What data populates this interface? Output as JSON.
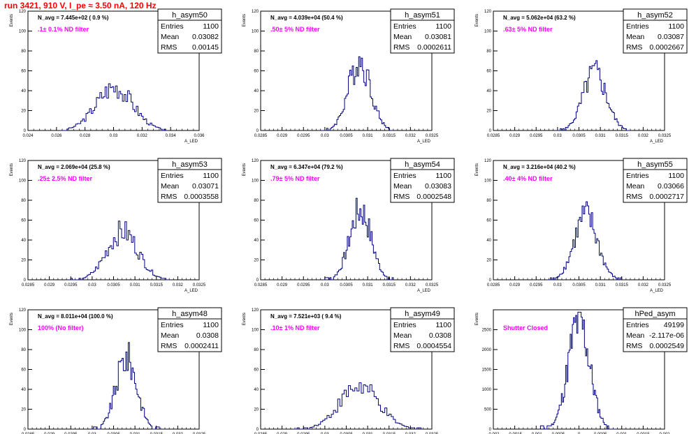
{
  "run_title": "run 3421,   910 V, I_pe ≈ 3.50 nA, 120 Hz",
  "colors": {
    "hist": "#000080",
    "annotation": "#ff00ff",
    "title": "#ff0000",
    "text": "#000000"
  },
  "axis_titles": {
    "x": "A_LED",
    "y": "Events"
  },
  "chart_data": [
    {
      "type": "bar",
      "name": "h_asym50",
      "navg": "N_avg = 7.445e+02 ( 0.9 %)",
      "filter": ".1± 0.1% ND filter",
      "stats": {
        "entries": "1100",
        "mean": "0.03082",
        "rms": "0.00145"
      },
      "xlim": [
        0.024,
        0.0375
      ],
      "ylim": [
        0,
        120
      ],
      "xticks": [
        "0.024",
        "0.026",
        "0.028",
        "0.03",
        "0.032",
        "0.034",
        "0.036"
      ],
      "yticks": [
        "0",
        "20",
        "40",
        "60",
        "80",
        "100",
        "120"
      ],
      "hist": {
        "mean": 0.03082,
        "sigma": 0.00145,
        "peak": 45,
        "bins": 60,
        "lo": 0.0268,
        "hi": 0.035
      }
    },
    {
      "type": "bar",
      "name": "h_asym51",
      "navg": "N_avg = 4.039e+04 (50.4 %)",
      "filter": ".50± 5% ND filter",
      "stats": {
        "entries": "1100",
        "mean": "0.03081",
        "rms": "0.0002611"
      },
      "xlim": [
        0.0285,
        0.0325
      ],
      "ylim": [
        0,
        120
      ],
      "xticks": [
        "0.0285",
        "0.029",
        "0.0295",
        "0.03",
        "0.0305",
        "0.031",
        "0.0315",
        "0.032",
        "0.0325"
      ],
      "yticks": [
        "0",
        "20",
        "40",
        "60",
        "80",
        "100",
        "120"
      ],
      "hist": {
        "mean": 0.03081,
        "sigma": 0.00026,
        "peak": 72,
        "bins": 55,
        "lo": 0.02995,
        "hi": 0.0316
      }
    },
    {
      "type": "bar",
      "name": "h_asym52",
      "navg": "N_avg = 5.062e+04 (63.2 %)",
      "filter": ".63± 5% ND filter",
      "stats": {
        "entries": "1100",
        "mean": "0.03087",
        "rms": "0.0002667"
      },
      "xlim": [
        0.0285,
        0.0325
      ],
      "ylim": [
        0,
        120
      ],
      "xticks": [
        "0.0285",
        "0.029",
        "0.0295",
        "0.03",
        "0.0305",
        "0.031",
        "0.0315",
        "0.032",
        "0.0325"
      ],
      "yticks": [
        "0",
        "20",
        "40",
        "60",
        "80",
        "100",
        "120"
      ],
      "hist": {
        "mean": 0.03087,
        "sigma": 0.00027,
        "peak": 60,
        "bins": 55,
        "lo": 0.03,
        "hi": 0.0317
      }
    },
    {
      "type": "bar",
      "name": "h_asym53",
      "navg": "N_avg = 2.069e+04 (25.8 %)",
      "filter": ".25± 2.5% ND filter",
      "stats": {
        "entries": "1100",
        "mean": "0.03071",
        "rms": "0.0003558"
      },
      "xlim": [
        0.0285,
        0.0325
      ],
      "ylim": [
        0,
        120
      ],
      "xticks": [
        "0.0285",
        "0.029",
        "0.0295",
        "0.03",
        "0.0305",
        "0.031",
        "0.0315",
        "0.032",
        "0.0325"
      ],
      "yticks": [
        "0",
        "20",
        "40",
        "60",
        "80",
        "100",
        "120"
      ],
      "hist": {
        "mean": 0.03071,
        "sigma": 0.00036,
        "peak": 50,
        "bins": 60,
        "lo": 0.0295,
        "hi": 0.0318
      }
    },
    {
      "type": "bar",
      "name": "h_asym54",
      "navg": "N_avg = 6.347e+04 (79.2 %)",
      "filter": ".79± 5% ND filter",
      "stats": {
        "entries": "1100",
        "mean": "0.03083",
        "rms": "0.0002548"
      },
      "xlim": [
        0.0285,
        0.0325
      ],
      "ylim": [
        0,
        120
      ],
      "xticks": [
        "0.0285",
        "0.029",
        "0.0295",
        "0.03",
        "0.0305",
        "0.031",
        "0.0315",
        "0.032",
        "0.0325"
      ],
      "yticks": [
        "0",
        "20",
        "40",
        "60",
        "80",
        "100",
        "120"
      ],
      "hist": {
        "mean": 0.03083,
        "sigma": 0.00025,
        "peak": 72,
        "bins": 55,
        "lo": 0.03,
        "hi": 0.0316
      }
    },
    {
      "type": "bar",
      "name": "h_asym55",
      "navg": "N_avg = 3.216e+04 (40.2 %)",
      "filter": ".40± 4% ND filter",
      "stats": {
        "entries": "1100",
        "mean": "0.03066",
        "rms": "0.0002717"
      },
      "xlim": [
        0.0285,
        0.0325
      ],
      "ylim": [
        0,
        120
      ],
      "xticks": [
        "0.0285",
        "0.029",
        "0.0295",
        "0.03",
        "0.0305",
        "0.031",
        "0.0315",
        "0.032",
        "0.0325"
      ],
      "yticks": [
        "0",
        "20",
        "40",
        "60",
        "80",
        "100",
        "120"
      ],
      "hist": {
        "mean": 0.03066,
        "sigma": 0.00027,
        "peak": 66,
        "bins": 55,
        "lo": 0.0298,
        "hi": 0.0315
      }
    },
    {
      "type": "bar",
      "name": "h_asym48",
      "navg": "N_avg = 8.011e+04 (100.0 %)",
      "filter": "100% (No filter)",
      "stats": {
        "entries": "1100",
        "mean": "0.0308",
        "rms": "0.0002411"
      },
      "xlim": [
        0.0285,
        0.0325
      ],
      "ylim": [
        0,
        120
      ],
      "xticks": [
        "0.0285",
        "0.029",
        "0.0295",
        "0.03",
        "0.0305",
        "0.031",
        "0.0315",
        "0.032",
        "0.0325"
      ],
      "yticks": [
        "0",
        "20",
        "40",
        "60",
        "80",
        "100",
        "120"
      ],
      "hist": {
        "mean": 0.0308,
        "sigma": 0.00024,
        "peak": 74,
        "bins": 55,
        "lo": 0.03,
        "hi": 0.0316
      }
    },
    {
      "type": "bar",
      "name": "h_asym49",
      "navg": "N_avg = 7.521e+03 ( 9.4 %)",
      "filter": ".10± 1% ND filter",
      "stats": {
        "entries": "1100",
        "mean": "0.0308",
        "rms": "0.0004554"
      },
      "xlim": [
        0.0285,
        0.0325
      ],
      "ylim": [
        0,
        120
      ],
      "xticks": [
        "0.0285",
        "0.029",
        "0.0295",
        "0.03",
        "0.0305",
        "0.031",
        "0.0315",
        "0.032",
        "0.0325"
      ],
      "yticks": [
        "0",
        "20",
        "40",
        "60",
        "80",
        "100",
        "120"
      ],
      "hist": {
        "mean": 0.0308,
        "sigma": 0.00046,
        "peak": 44,
        "bins": 60,
        "lo": 0.0293,
        "hi": 0.0323
      }
    },
    {
      "type": "bar",
      "name": "hPed_asym",
      "navg": "",
      "filter": "Shutter Closed",
      "stats": {
        "entries": "49199",
        "mean": "-2.117e-06",
        "rms": "0.0002549"
      },
      "xlim": [
        -0.002,
        0.002
      ],
      "ylim": [
        0,
        3000
      ],
      "xticks": [
        "-0.002",
        "-0.0015",
        "-0.001",
        "-0.0005",
        "0",
        "0.0005",
        "0.001",
        "0.0015",
        "0.002"
      ],
      "yticks": [
        "0",
        "500",
        "1000",
        "1500",
        "2000",
        "2500"
      ],
      "hist": {
        "mean": 0.0,
        "sigma": 0.00025,
        "peak": 2800,
        "bins": 70,
        "lo": -0.0009,
        "hi": 0.0009
      }
    }
  ]
}
